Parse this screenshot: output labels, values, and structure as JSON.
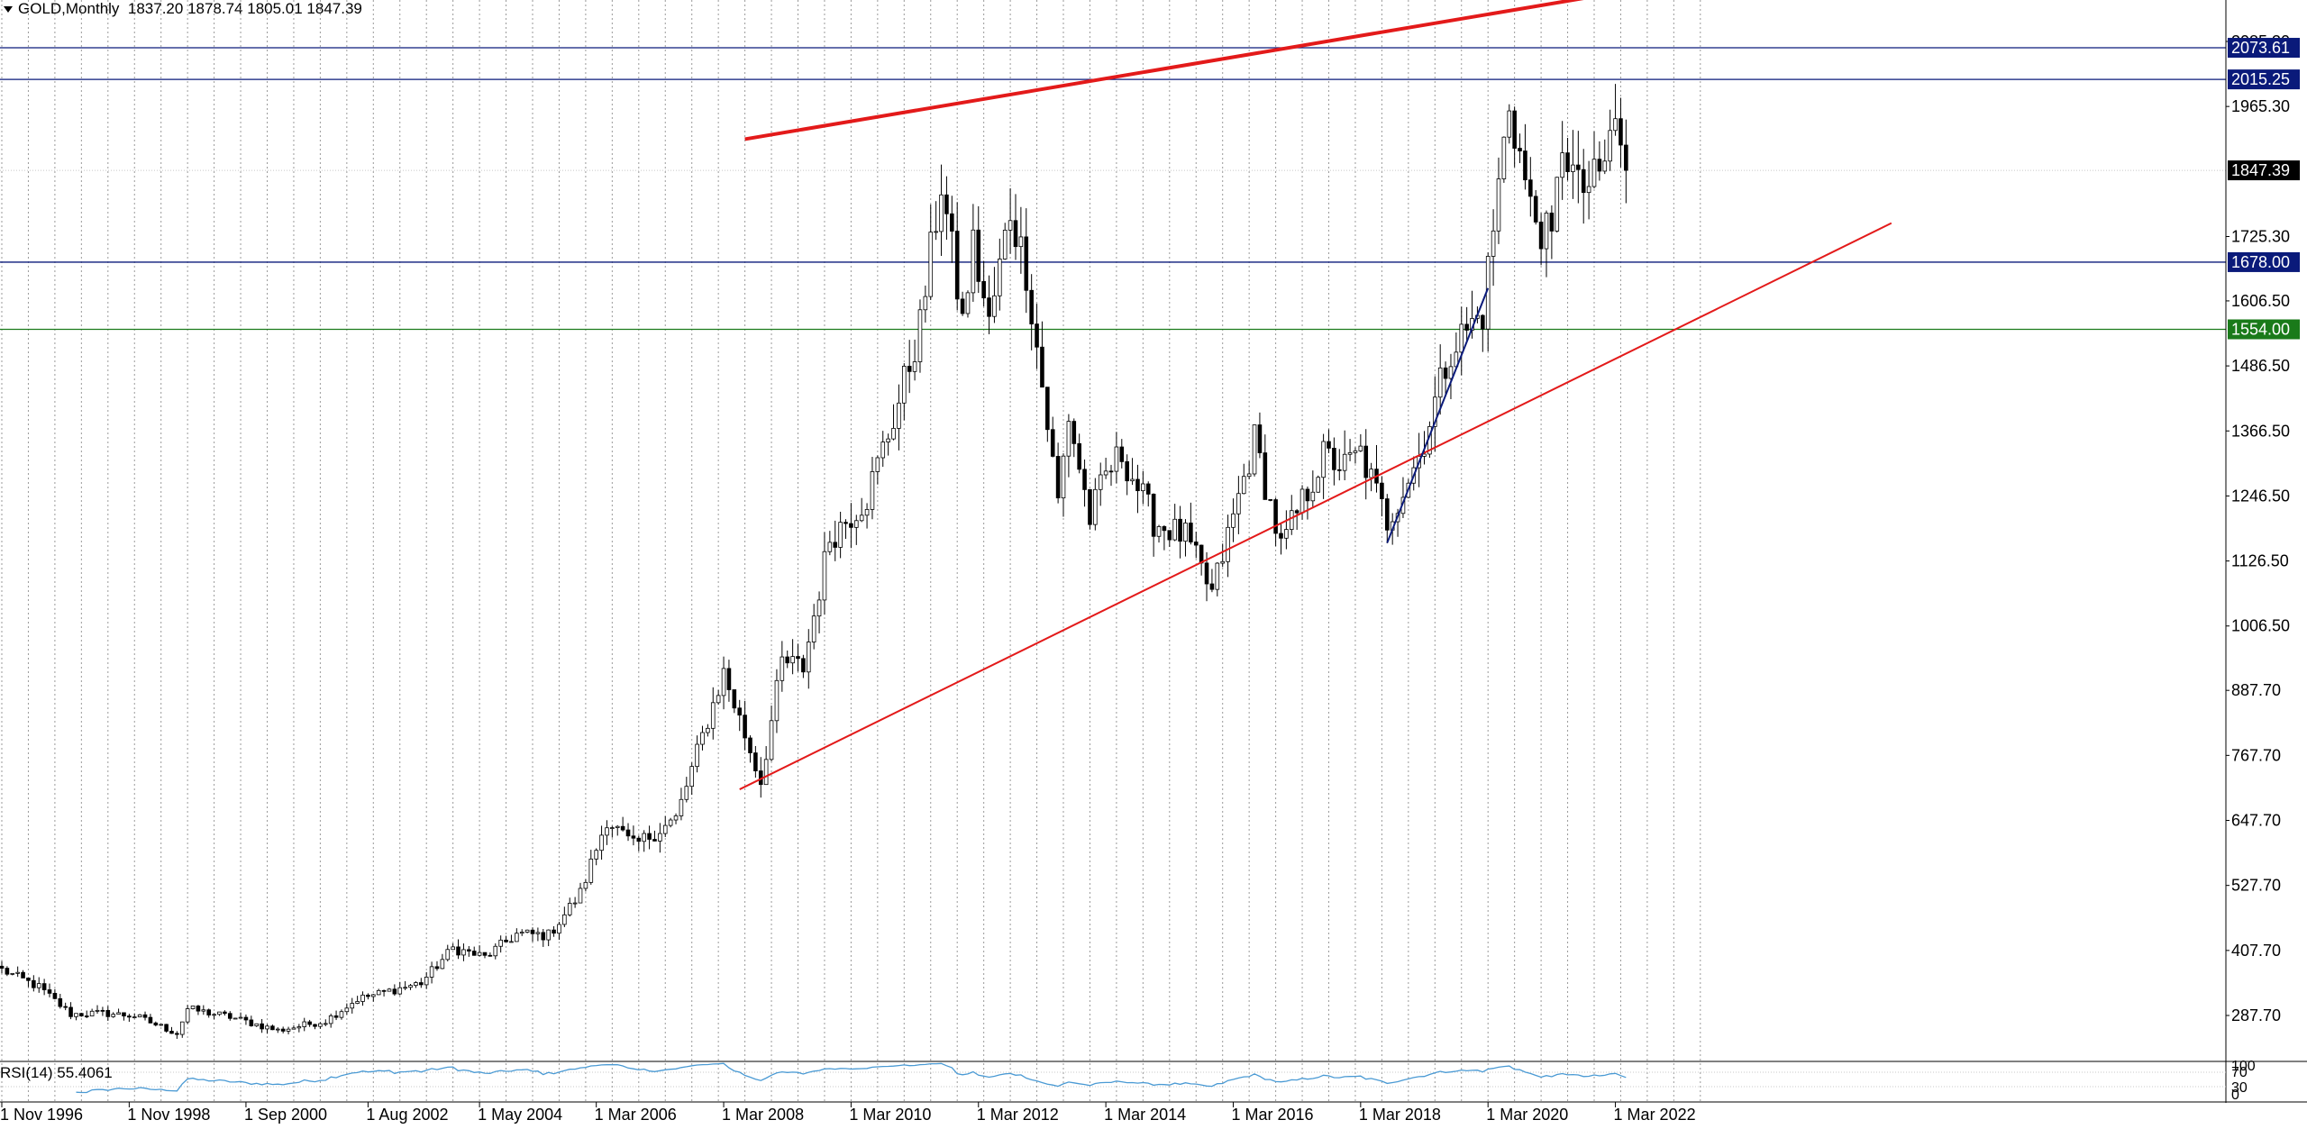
{
  "header": {
    "symbol": "GOLD,Monthly",
    "ohlc": "1837.20 1878.74 1805.01 1847.39"
  },
  "rsi": {
    "label": "RSI(14) 55.4061",
    "scale_labels": [
      "100",
      "70",
      "30",
      "0"
    ]
  },
  "colors": {
    "bull": "#ffffff",
    "bear": "#000000",
    "red_line": "#e31a1a",
    "navy": "#0a1a7a",
    "green_level": "#1a7a1a",
    "rsi_line": "#4a9ad4",
    "price_tag": "#000000"
  },
  "chart_data": {
    "type": "candlestick",
    "title": "GOLD,Monthly",
    "last_price": 1847.39,
    "y_axis": {
      "ticks": [
        2085.3,
        1965.3,
        1725.3,
        1606.5,
        1486.5,
        1366.5,
        1246.5,
        1126.5,
        1006.5,
        887.7,
        767.7,
        647.7,
        527.7,
        407.7,
        287.7
      ],
      "tick_labels": [
        "2085.30",
        "1965.30",
        "1725.30",
        "1606.50",
        "1486.50",
        "1366.50",
        "1246.50",
        "1126.50",
        "1006.50",
        "887.70",
        "767.70",
        "647.70",
        "527.70",
        "407.70",
        "287.70"
      ]
    },
    "x_axis": {
      "start": "1996-11",
      "labels": [
        {
          "date": "1996-11",
          "text": "1 Nov 1996"
        },
        {
          "date": "1998-11",
          "text": "1 Nov 1998"
        },
        {
          "date": "2000-09",
          "text": "1 Sep 2000"
        },
        {
          "date": "2002-08",
          "text": "1 Aug 2002"
        },
        {
          "date": "2004-05",
          "text": "1 May 2004"
        },
        {
          "date": "2006-03",
          "text": "1 Mar 2006"
        },
        {
          "date": "2008-03",
          "text": "1 Mar 2008"
        },
        {
          "date": "2010-03",
          "text": "1 Mar 2010"
        },
        {
          "date": "2012-03",
          "text": "1 Mar 2012"
        },
        {
          "date": "2014-03",
          "text": "1 Mar 2014"
        },
        {
          "date": "2016-03",
          "text": "1 Mar 2016"
        },
        {
          "date": "2018-03",
          "text": "1 Mar 2018"
        },
        {
          "date": "2020-03",
          "text": "1 Mar 2020"
        },
        {
          "date": "2022-03",
          "text": "1 Mar 2022"
        }
      ]
    },
    "close_path": [
      [
        "1996-11",
        372
      ],
      [
        "1997-06",
        340
      ],
      [
        "1997-12",
        290
      ],
      [
        "1998-06",
        292
      ],
      [
        "1998-12",
        287
      ],
      [
        "1999-08",
        255
      ],
      [
        "1999-10",
        300
      ],
      [
        "2000-06",
        285
      ],
      [
        "2001-03",
        260
      ],
      [
        "2001-12",
        278
      ],
      [
        "2002-06",
        318
      ],
      [
        "2003-06",
        348
      ],
      [
        "2003-12",
        412
      ],
      [
        "2004-06",
        395
      ],
      [
        "2004-12",
        438
      ],
      [
        "2005-06",
        436
      ],
      [
        "2005-12",
        513
      ],
      [
        "2006-05",
        650
      ],
      [
        "2006-10",
        600
      ],
      [
        "2007-06",
        650
      ],
      [
        "2007-12",
        833
      ],
      [
        "2008-03",
        920
      ],
      [
        "2008-10",
        720
      ],
      [
        "2009-02",
        940
      ],
      [
        "2009-06",
        930
      ],
      [
        "2009-11",
        1170
      ],
      [
        "2010-06",
        1245
      ],
      [
        "2010-12",
        1420
      ],
      [
        "2011-04",
        1560
      ],
      [
        "2011-08",
        1825
      ],
      [
        "2011-12",
        1565
      ],
      [
        "2012-02",
        1710
      ],
      [
        "2012-05",
        1560
      ],
      [
        "2012-09",
        1775
      ],
      [
        "2012-12",
        1665
      ],
      [
        "2013-06",
        1235
      ],
      [
        "2013-08",
        1395
      ],
      [
        "2013-12",
        1205
      ],
      [
        "2014-03",
        1285
      ],
      [
        "2014-06",
        1325
      ],
      [
        "2014-12",
        1200
      ],
      [
        "2015-06",
        1170
      ],
      [
        "2015-11",
        1065
      ],
      [
        "2016-07",
        1350
      ],
      [
        "2016-12",
        1150
      ],
      [
        "2017-08",
        1320
      ],
      [
        "2017-12",
        1300
      ],
      [
        "2018-03",
        1325
      ],
      [
        "2018-08",
        1200
      ],
      [
        "2019-02",
        1320
      ],
      [
        "2019-08",
        1520
      ],
      [
        "2020-02",
        1585
      ],
      [
        "2020-07",
        1975
      ],
      [
        "2020-11",
        1775
      ],
      [
        "2021-03",
        1710
      ],
      [
        "2021-05",
        1905
      ],
      [
        "2021-08",
        1810
      ],
      [
        "2021-12",
        1830
      ],
      [
        "2022-03",
        1940
      ],
      [
        "2022-05",
        1847.39
      ]
    ],
    "horizontal_levels": [
      {
        "value": 2073.61,
        "label": "2073.61",
        "color": "navy"
      },
      {
        "value": 2015.25,
        "label": "2015.25",
        "color": "navy"
      },
      {
        "value": 1847.39,
        "label": "1847.39",
        "color": "price_tag",
        "style": "dotted"
      },
      {
        "value": 1678.0,
        "label": "1678.00",
        "color": "navy"
      },
      {
        "value": 1554.0,
        "label": "1554.00",
        "color": "green_level"
      }
    ],
    "trendlines": [
      {
        "name": "upper",
        "color": "red_line",
        "from": [
          "2008-07",
          1905
        ],
        "to": [
          "2021-09",
          2165
        ]
      },
      {
        "name": "lower",
        "color": "red_line",
        "from": [
          "2008-06",
          705
        ],
        "to": [
          "2026-07",
          1750
        ]
      },
      {
        "name": "support",
        "color": "navy",
        "from": [
          "2018-08",
          1160
        ],
        "to": [
          "2020-03",
          1630
        ]
      }
    ],
    "grid": {
      "vertical": true,
      "style": "dotted"
    }
  }
}
